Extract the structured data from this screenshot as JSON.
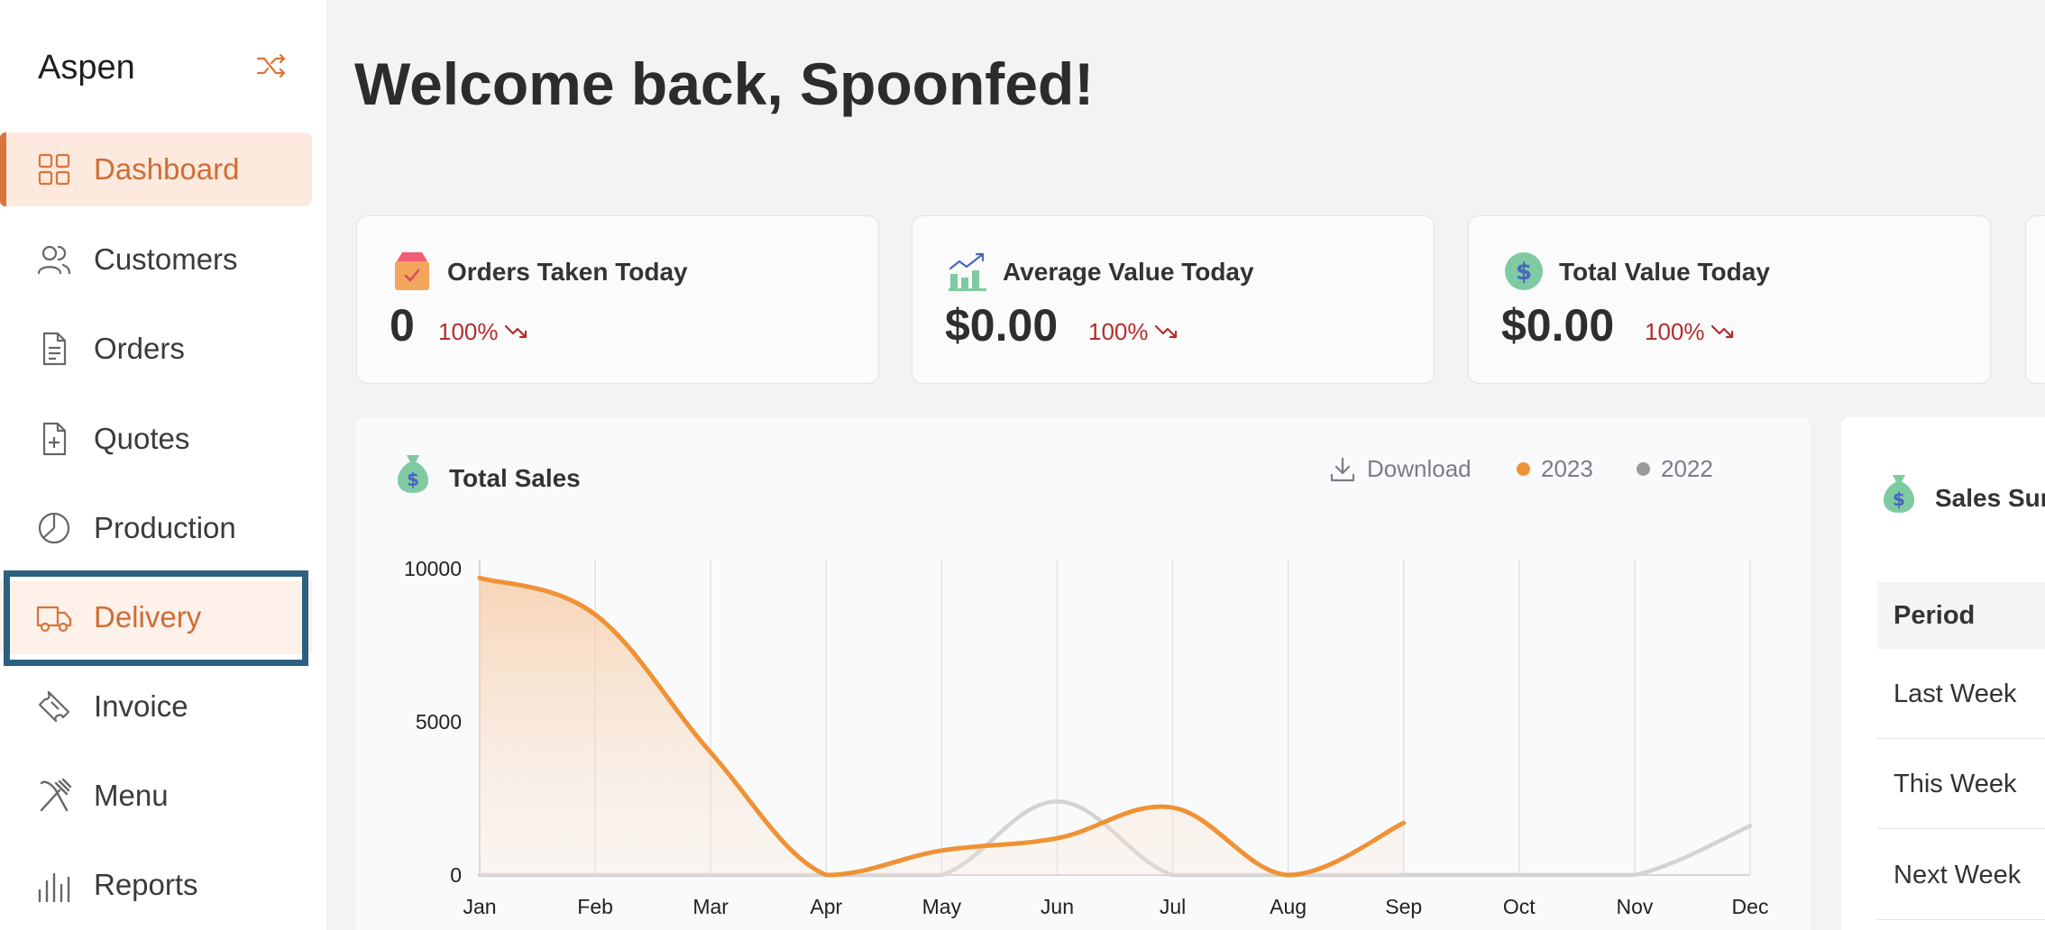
{
  "app": {
    "brand": "Aspen"
  },
  "sidebar": {
    "items": [
      {
        "label": "Dashboard",
        "icon": "grid-icon"
      },
      {
        "label": "Customers",
        "icon": "users-icon"
      },
      {
        "label": "Orders",
        "icon": "document-icon"
      },
      {
        "label": "Quotes",
        "icon": "file-plus-icon"
      },
      {
        "label": "Production",
        "icon": "pie-icon"
      },
      {
        "label": "Delivery",
        "icon": "truck-icon"
      },
      {
        "label": "Invoice",
        "icon": "ticket-icon"
      },
      {
        "label": "Menu",
        "icon": "utensils-icon"
      },
      {
        "label": "Reports",
        "icon": "bar-chart-icon"
      }
    ]
  },
  "header": {
    "title": "Welcome back, Spoonfed!"
  },
  "stats": [
    {
      "label": "Orders Taken Today",
      "value": "0",
      "delta": "100%"
    },
    {
      "label": "Average Value Today",
      "value": "$0.00",
      "delta": "100%"
    },
    {
      "label": "Total Value Today",
      "value": "$0.00",
      "delta": "100%"
    }
  ],
  "sales": {
    "title": "Total Sales",
    "download_label": "Download",
    "colors": {
      "2023": "#ef9235",
      "2022": "#d3d3d3"
    }
  },
  "chart_data": {
    "type": "line",
    "categories": [
      "Jan",
      "Feb",
      "Mar",
      "Apr",
      "May",
      "Jun",
      "Jul",
      "Aug",
      "Sep",
      "Oct",
      "Nov",
      "Dec"
    ],
    "series": [
      {
        "name": "2023",
        "values": [
          9700,
          8500,
          4000,
          0,
          800,
          1200,
          2200,
          0,
          1700,
          null,
          null,
          null
        ]
      },
      {
        "name": "2022",
        "values": [
          0,
          0,
          0,
          0,
          0,
          2400,
          0,
          0,
          0,
          0,
          0,
          1600
        ]
      }
    ],
    "yticks": [
      0,
      5000,
      10000
    ],
    "ylim": [
      0,
      10000
    ],
    "grid": true,
    "legend": "top-right"
  },
  "summary": {
    "title": "Sales Summary",
    "period_header": "Period",
    "rows": [
      "Last Week",
      "This Week",
      "Next Week"
    ]
  }
}
